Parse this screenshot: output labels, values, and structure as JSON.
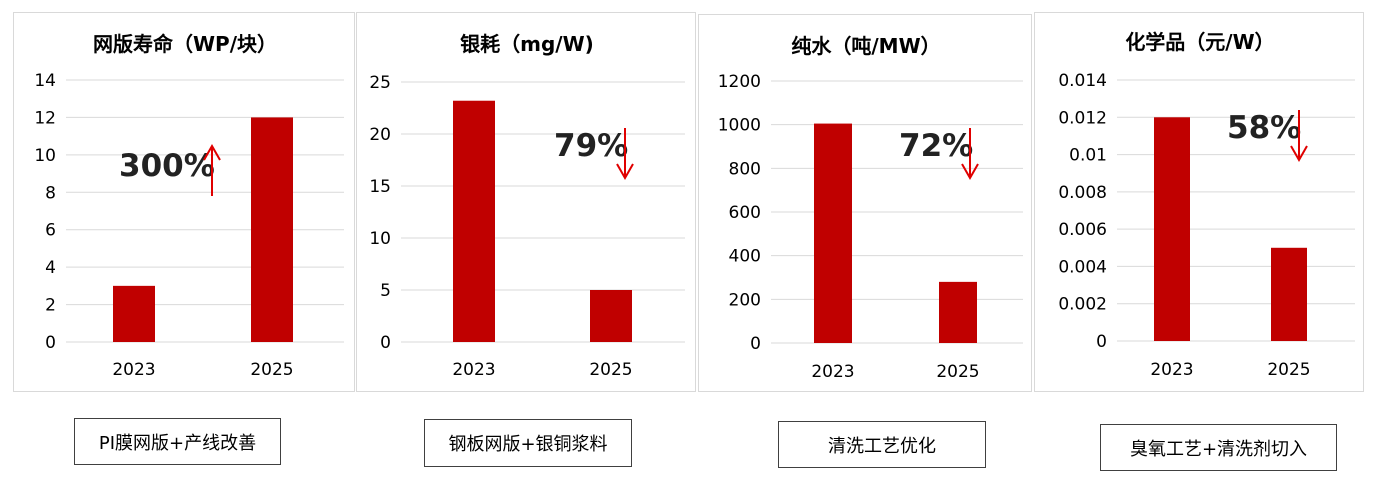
{
  "accent_color": "#c00000",
  "arrow_color": "#e00000",
  "chart_data": [
    {
      "type": "bar",
      "title": "网版寿命（WP/块）",
      "categories": [
        "2023",
        "2025"
      ],
      "values": [
        3,
        12
      ],
      "ylim": [
        0,
        14
      ],
      "yticks": [
        0,
        2,
        4,
        6,
        8,
        10,
        12,
        14
      ],
      "ytick_labels": [
        "0",
        "2",
        "4",
        "6",
        "8",
        "10",
        "12",
        "14"
      ],
      "grid": true,
      "annotation": {
        "text": "300%",
        "arrow": "↑",
        "direction": "up"
      }
    },
    {
      "type": "bar",
      "title": "银耗（mg/W)",
      "categories": [
        "2023",
        "2025"
      ],
      "values": [
        23.2,
        5
      ],
      "ylim": [
        0,
        25
      ],
      "yticks": [
        0,
        5,
        10,
        15,
        20,
        25
      ],
      "ytick_labels": [
        "0",
        "5",
        "10",
        "15",
        "20",
        "25"
      ],
      "grid": true,
      "annotation": {
        "text": "79%",
        "arrow": "↓",
        "direction": "down"
      }
    },
    {
      "type": "bar",
      "title": "纯水（吨/MW）",
      "categories": [
        "2023",
        "2025"
      ],
      "values": [
        1005,
        280
      ],
      "ylim": [
        0,
        1200
      ],
      "yticks": [
        0,
        200,
        400,
        600,
        800,
        1000,
        1200
      ],
      "ytick_labels": [
        "0",
        "200",
        "400",
        "600",
        "800",
        "1000",
        "1200"
      ],
      "grid": true,
      "annotation": {
        "text": "72%",
        "arrow": "↓",
        "direction": "down"
      }
    },
    {
      "type": "bar",
      "title": "化学品（元/W）",
      "categories": [
        "2023",
        "2025"
      ],
      "values": [
        0.012,
        0.005
      ],
      "ylim": [
        0,
        0.014
      ],
      "yticks": [
        0,
        0.002,
        0.004,
        0.006,
        0.008,
        0.01,
        0.012,
        0.014
      ],
      "ytick_labels": [
        "0",
        "0.002",
        "0.004",
        "0.006",
        "0.008",
        "0.01",
        "0.012",
        "0.014"
      ],
      "grid": true,
      "annotation": {
        "text": "58%",
        "arrow": "↓",
        "direction": "down"
      }
    }
  ],
  "captions": [
    "PI膜网版+产线改善",
    "钢板网版+银铜浆料",
    "清洗工艺优化",
    "臭氧工艺+清洗剂切入"
  ]
}
